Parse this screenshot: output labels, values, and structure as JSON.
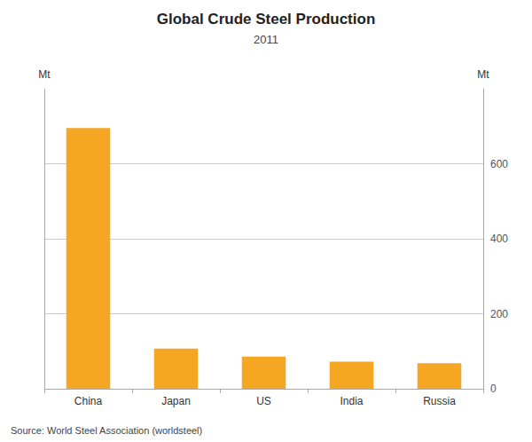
{
  "chart_data": {
    "type": "bar",
    "title": "Global Crude Steel Production",
    "subtitle": "2011",
    "categories": [
      "China",
      "Japan",
      "US",
      "India",
      "Russia"
    ],
    "values": [
      695,
      107,
      86,
      72,
      68
    ],
    "color": "#F5A623",
    "ylabel": "Mt",
    "y2label": "Mt",
    "ylim": [
      0,
      800
    ],
    "yticks": [
      0,
      200,
      400,
      600
    ],
    "grid": true,
    "source": "Source: World Steel Association (worldsteel)"
  }
}
